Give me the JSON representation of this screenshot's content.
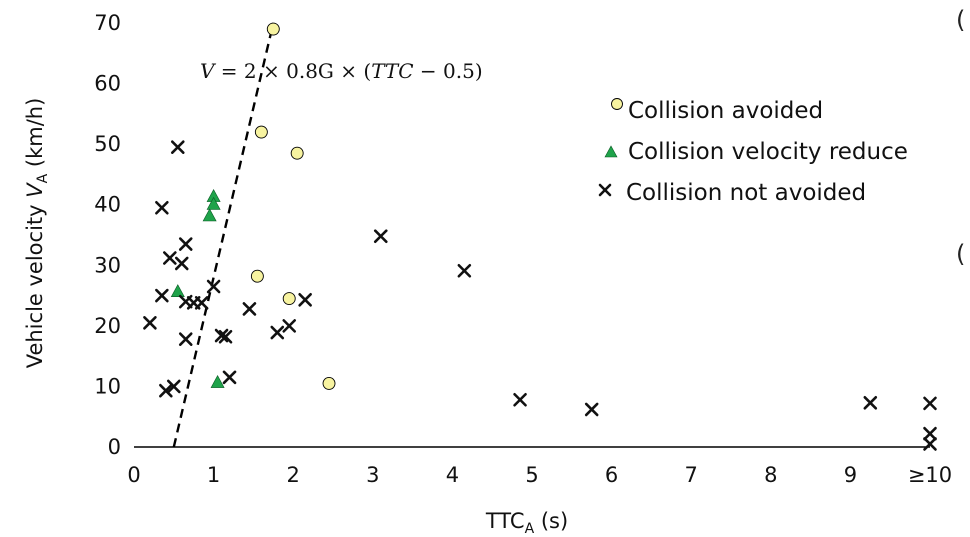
{
  "chart_data": {
    "type": "scatter",
    "xlabel": "TTC",
    "xlabel_sub": "A",
    "xlabel_unit": "(s)",
    "ylabel": "Vehicle  velocity",
    "ylabel_var": "V",
    "ylabel_sub": "A",
    "ylabel_unit": "(km/h)",
    "x_ticks": [
      "0",
      "1",
      "2",
      "3",
      "4",
      "5",
      "6",
      "7",
      "8",
      "9",
      "≥10"
    ],
    "y_ticks": [
      "0",
      "10",
      "20",
      "30",
      "40",
      "50",
      "60",
      "70"
    ],
    "xlim": [
      0,
      10
    ],
    "ylim": [
      0,
      70
    ],
    "grid": false,
    "legend_position": "top-right",
    "equation": {
      "lhs": "V",
      "middle": " = 2 × 0.8G × (",
      "ttc": "TTC",
      "rhs": " − 0.5)",
      "points": [
        [
          0.5,
          0
        ],
        [
          1.75,
          70
        ]
      ],
      "style": "dashed"
    },
    "series": [
      {
        "name": "Collision avoided",
        "marker": "circle",
        "color": "#f7f3a0",
        "points": [
          [
            1.75,
            69
          ],
          [
            1.6,
            52
          ],
          [
            2.05,
            48.5
          ],
          [
            1.55,
            28.2
          ],
          [
            1.95,
            24.5
          ],
          [
            2.45,
            10.5
          ]
        ]
      },
      {
        "name": "Collision velocity reduce",
        "marker": "triangle",
        "color": "#1fa34a",
        "points": [
          [
            1.0,
            41.5
          ],
          [
            1.0,
            40.2
          ],
          [
            0.95,
            38.3
          ],
          [
            0.55,
            25.8
          ],
          [
            1.05,
            10.8
          ]
        ]
      },
      {
        "name": "Collision not avoided",
        "marker": "x",
        "color": "#111111",
        "points": [
          [
            0.55,
            49.5
          ],
          [
            0.35,
            39.5
          ],
          [
            0.65,
            33.5
          ],
          [
            0.45,
            31.2
          ],
          [
            0.6,
            30.3
          ],
          [
            1.0,
            26.5
          ],
          [
            0.35,
            25.0
          ],
          [
            0.65,
            24.0
          ],
          [
            0.75,
            23.8
          ],
          [
            0.85,
            23.8
          ],
          [
            0.2,
            20.5
          ],
          [
            0.65,
            17.8
          ],
          [
            1.1,
            18.4
          ],
          [
            1.15,
            18.2
          ],
          [
            1.2,
            11.5
          ],
          [
            0.4,
            9.3
          ],
          [
            0.5,
            10.0
          ],
          [
            1.45,
            22.8
          ],
          [
            1.8,
            18.9
          ],
          [
            1.95,
            20.0
          ],
          [
            2.15,
            24.3
          ],
          [
            3.1,
            34.8
          ],
          [
            4.15,
            29.1
          ],
          [
            4.85,
            7.8
          ],
          [
            5.75,
            6.2
          ],
          [
            9.25,
            7.3
          ],
          [
            10.0,
            7.2
          ],
          [
            10.0,
            2.2
          ],
          [
            10.0,
            0.5
          ]
        ]
      }
    ]
  }
}
